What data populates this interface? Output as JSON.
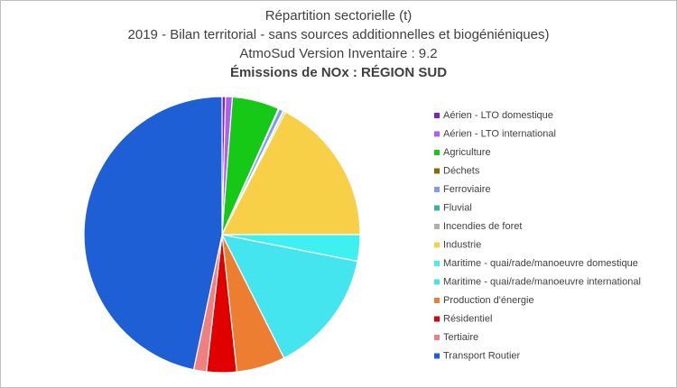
{
  "chart_data": {
    "type": "pie",
    "subtitle": [
      "Répartition sectorielle (t)",
      "2019 - Bilan territorial - sans sources additionnelles et biogéniéniques)",
      "AtmoSud Version Inventaire : 9.2"
    ],
    "title": "Émissions de NOx : RÉGION SUD",
    "categories": [
      "Aérien - LTO domestique",
      "Aérien - LTO international",
      "Agriculture",
      "Déchets",
      "Ferroviaire",
      "Fluvial",
      "Incendies de foret",
      "Industrie",
      "Maritime - quai/rade/manoeuvre domestique",
      "Maritime - quai/rade/manoeuvre international",
      "Production d'énergie",
      "Résidentiel",
      "Tertiaire",
      "Transport Routier"
    ],
    "values": [
      0.4,
      0.8,
      5.5,
      0.1,
      0.5,
      0.1,
      0.2,
      17.4,
      3.1,
      14.5,
      5.7,
      3.5,
      1.5,
      46.7
    ],
    "colors": [
      "#7a1fd6",
      "#b25cf0",
      "#16c916",
      "#8a6a00",
      "#7f9cf5",
      "#3bb0a8",
      "#b0b0b0",
      "#f7d047",
      "#3ff0f0",
      "#45e5f0",
      "#ed7d31",
      "#e00000",
      "#f08080",
      "#1f5fd6"
    ],
    "legend": "right"
  }
}
